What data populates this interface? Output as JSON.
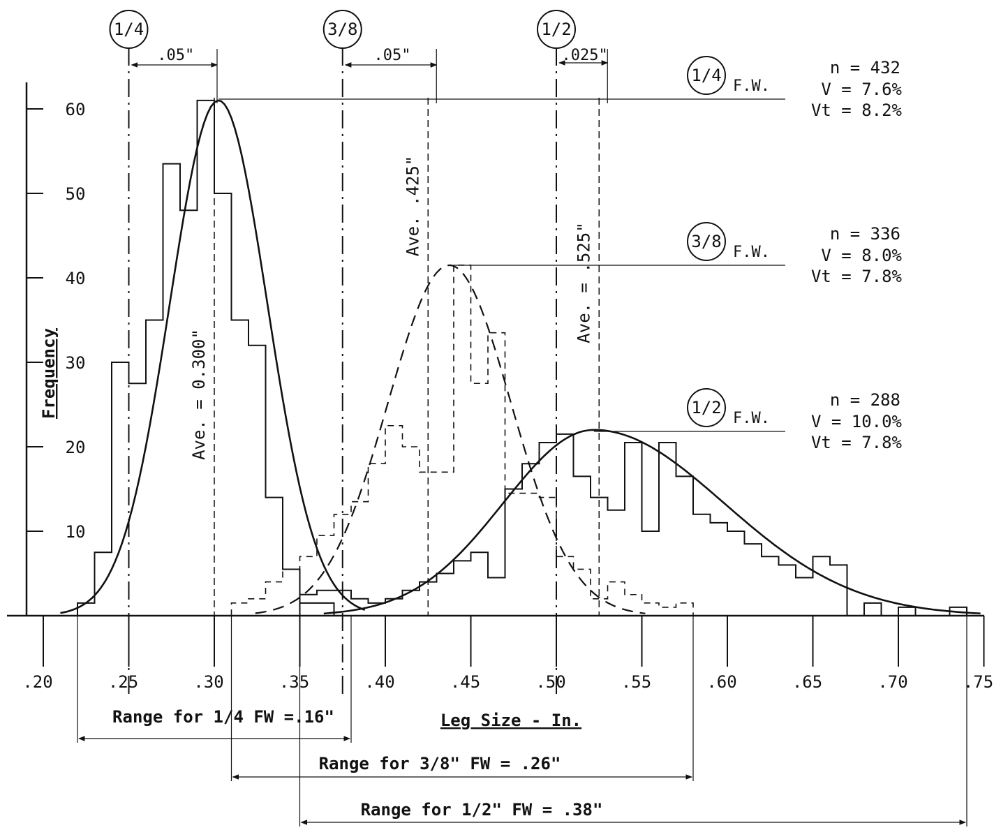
{
  "chart_data": {
    "type": "line",
    "xlabel": "Leg Size - In.",
    "ylabel": "Frequency",
    "x_ticks": [
      ".20",
      ".25",
      ".30",
      ".35",
      ".40",
      ".45",
      ".50",
      ".55",
      ".60",
      ".65",
      ".70",
      ".75"
    ],
    "x_tick_values": [
      0.2,
      0.25,
      0.3,
      0.35,
      0.4,
      0.45,
      0.5,
      0.55,
      0.6,
      0.65,
      0.7,
      0.75
    ],
    "y_ticks": [
      "10",
      "20",
      "30",
      "40",
      "50",
      "60"
    ],
    "y_tick_values": [
      10,
      20,
      30,
      40,
      50,
      60
    ],
    "xlim": [
      0.18,
      0.76
    ],
    "ylim": [
      0,
      63
    ],
    "grid": false,
    "reference_lines": [
      {
        "label": "1/4",
        "x": 0.25
      },
      {
        "label": "3/8",
        "x": 0.375
      },
      {
        "label": "1/2",
        "x": 0.5
      }
    ],
    "offsets": [
      ".05\"",
      ".05\"",
      ".025\""
    ],
    "series": [
      {
        "label": "1/4",
        "suffix": "F.W.",
        "n_text": "n = 432",
        "v_text": "V = 7.6%",
        "vt_text": "Vt = 8.2%",
        "avg_text": "Ave. = 0.300\"",
        "average": 0.3,
        "range_text": "Range for 1/4 FW =.16\"",
        "range": [
          0.22,
          0.38
        ],
        "curve": {
          "mean": 0.3025,
          "sd": 0.0285,
          "peak": 61,
          "style": "solid"
        },
        "histogram": {
          "bin_edges": [
            0.22,
            0.23,
            0.24,
            0.25,
            0.26,
            0.27,
            0.28,
            0.29,
            0.3,
            0.31,
            0.32,
            0.33,
            0.34,
            0.35,
            0.36,
            0.37,
            0.38
          ],
          "values": [
            1.5,
            7.5,
            30,
            27.5,
            35,
            53.5,
            48,
            61,
            50,
            35,
            32,
            14,
            5.5,
            1.5,
            1.5,
            0
          ],
          "style": "solid"
        }
      },
      {
        "label": "3/8",
        "suffix": "F.W.",
        "n_text": "n = 336",
        "v_text": "V = 8.0%",
        "vt_text": "Vt = 7.8%",
        "avg_text": "Ave. .425\"",
        "average": 0.425,
        "range_text": "Range for 3/8\" FW = .26\"",
        "range": [
          0.31,
          0.58
        ],
        "curve": {
          "mean": 0.4375,
          "sd": 0.036,
          "peak": 41.5,
          "style": "dashed"
        },
        "histogram": {
          "bin_edges": [
            0.31,
            0.32,
            0.33,
            0.34,
            0.35,
            0.36,
            0.37,
            0.38,
            0.39,
            0.4,
            0.41,
            0.42,
            0.43,
            0.44,
            0.45,
            0.46,
            0.47,
            0.48,
            0.49,
            0.5,
            0.51,
            0.52,
            0.53,
            0.54,
            0.55,
            0.56,
            0.57,
            0.58
          ],
          "values": [
            1.5,
            2,
            4,
            5.5,
            7,
            9.5,
            12,
            13.5,
            18,
            22.5,
            20,
            17,
            17,
            41.5,
            27.5,
            33.5,
            14.5,
            14.5,
            14,
            7,
            5.5,
            2,
            4,
            2.5,
            1.5,
            1,
            1.5
          ],
          "style": "dashed"
        }
      },
      {
        "label": "1/2",
        "suffix": "F.W.",
        "n_text": "n = 288",
        "v_text": "V = 10.0%",
        "vt_text": "Vt = 7.8%",
        "avg_text": "Ave. = .525\"",
        "average": 0.525,
        "range_text": "Range for 1/2\" FW = .38\"",
        "range": [
          0.35,
          0.74
        ],
        "curve": {
          "mean": 0.522,
          "sd_left": 0.053,
          "sd_right": 0.076,
          "peak": 22,
          "style": "solid"
        },
        "histogram": {
          "bin_edges": [
            0.35,
            0.36,
            0.37,
            0.38,
            0.39,
            0.4,
            0.41,
            0.42,
            0.43,
            0.44,
            0.45,
            0.46,
            0.47,
            0.48,
            0.49,
            0.5,
            0.51,
            0.52,
            0.53,
            0.54,
            0.55,
            0.56,
            0.57,
            0.58,
            0.59,
            0.6,
            0.61,
            0.62,
            0.63,
            0.64,
            0.65,
            0.66,
            0.67,
            0.68,
            0.69,
            0.7,
            0.71,
            0.72,
            0.73,
            0.74
          ],
          "values": [
            2.5,
            3,
            3,
            2,
            1.5,
            2,
            3,
            4,
            5,
            6.5,
            7.5,
            4.5,
            15,
            18,
            20.5,
            21.5,
            16.5,
            14,
            12.5,
            20.5,
            10,
            20.5,
            16.5,
            12,
            11,
            10,
            8.5,
            7,
            6,
            4.5,
            7,
            6,
            0,
            1.5,
            0,
            1,
            0,
            0,
            1
          ],
          "style": "solid"
        }
      }
    ]
  }
}
